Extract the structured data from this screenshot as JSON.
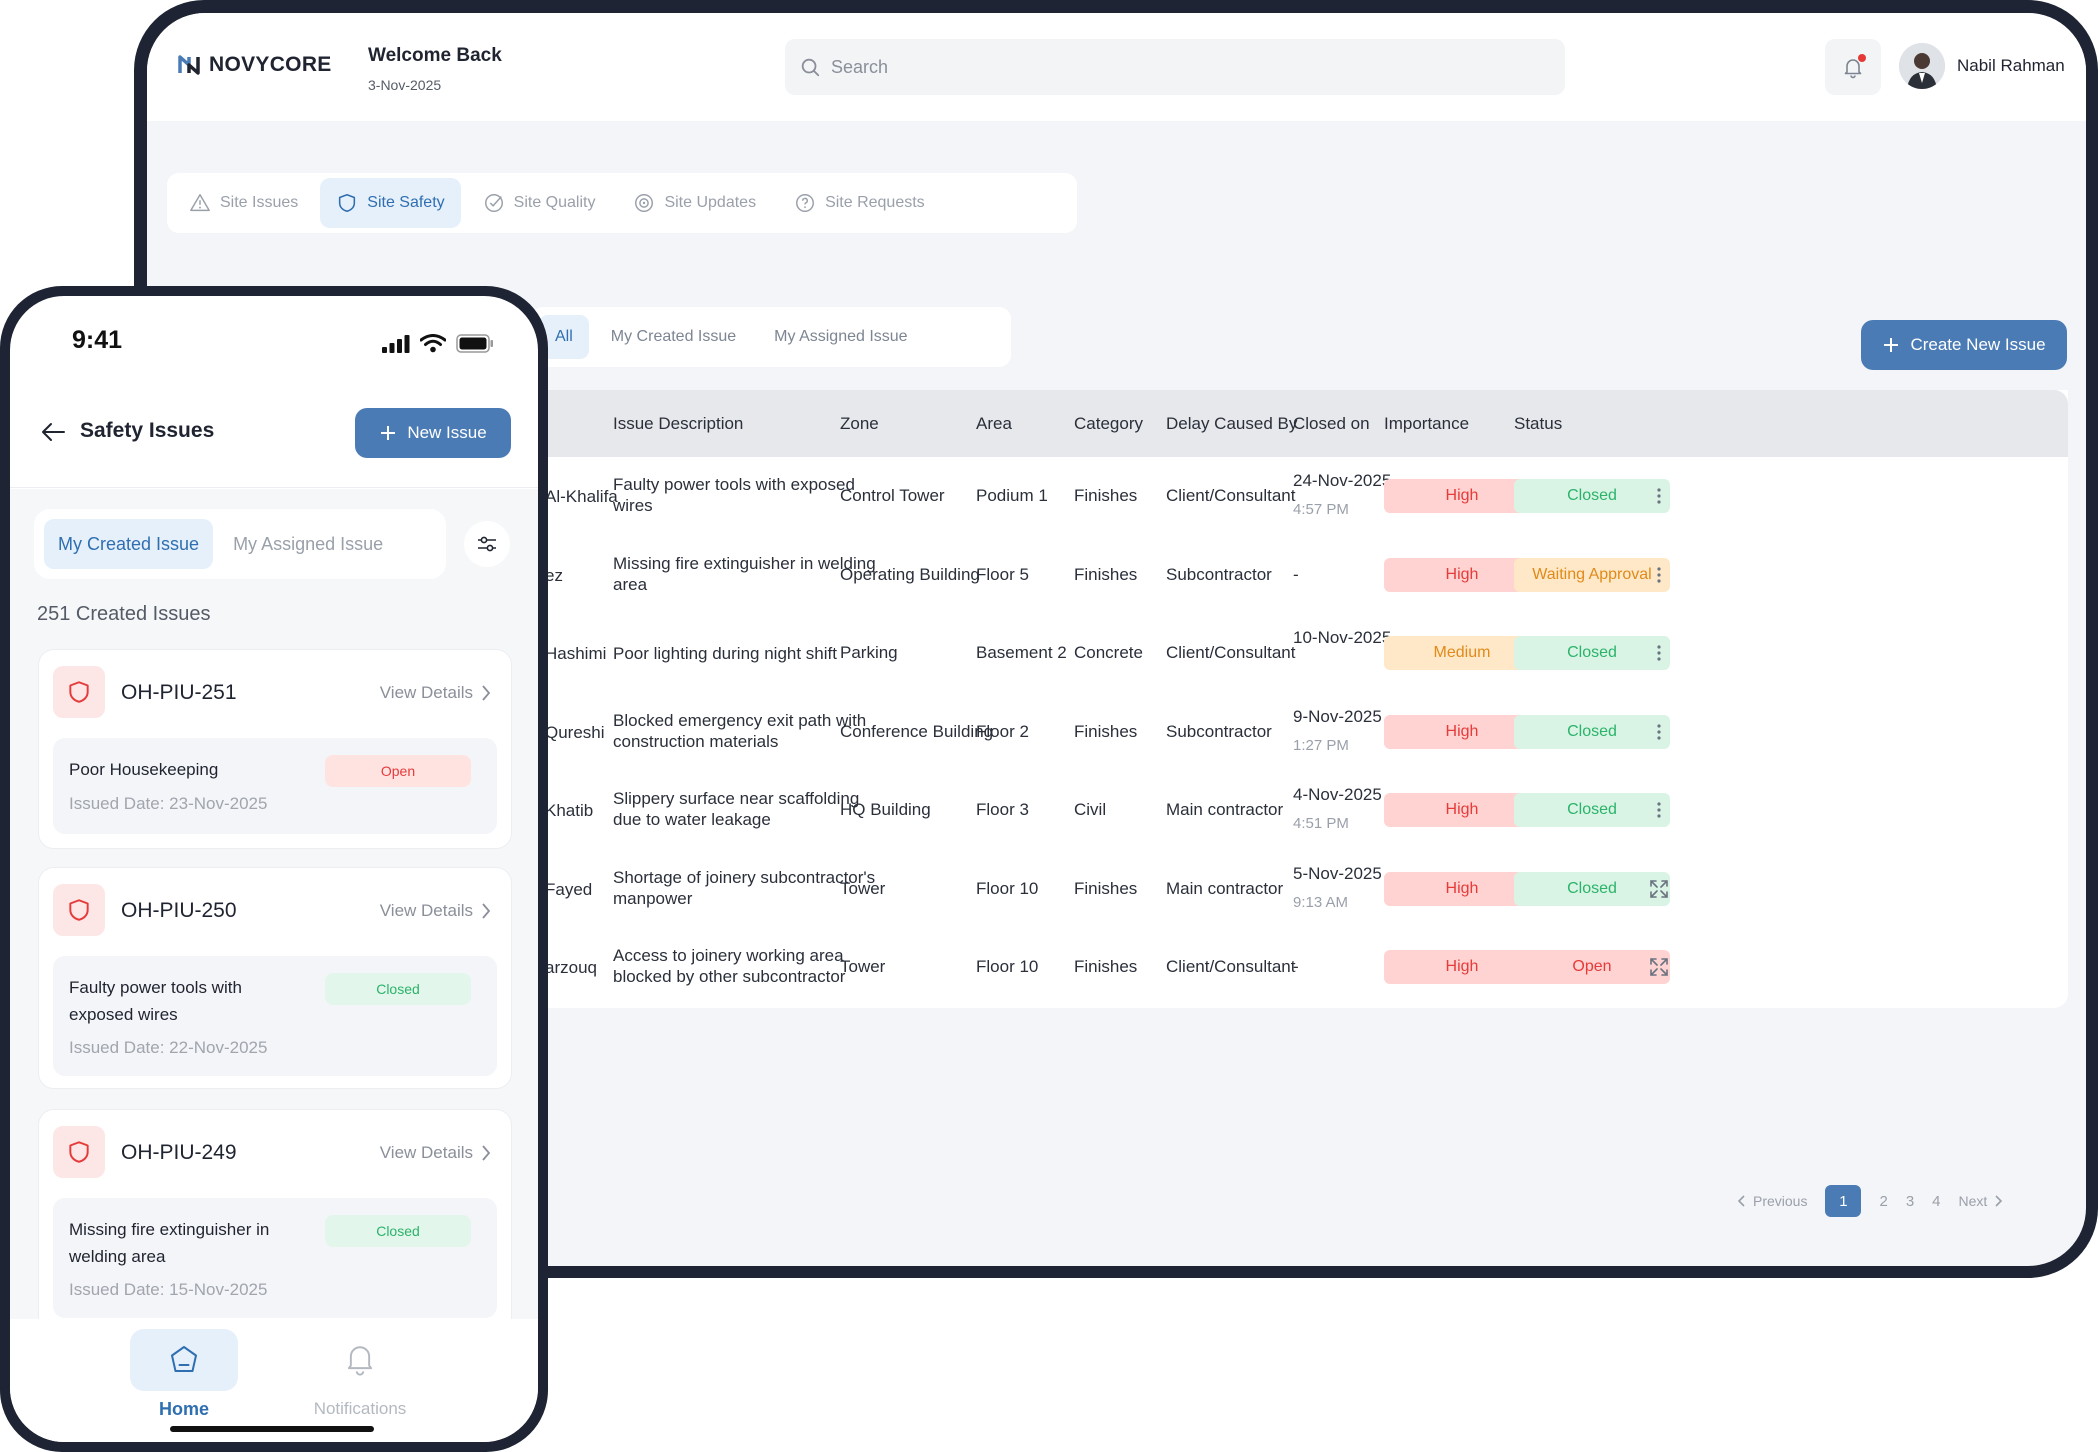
{
  "brand": {
    "name": "NOVYCORE"
  },
  "header": {
    "welcome_title": "Welcome Back",
    "date": "3-Nov-2025",
    "search_placeholder": "Search",
    "user_name": "Nabil Rahman"
  },
  "main_tabs": [
    {
      "label": "Site Issues",
      "icon": "warning-icon",
      "active": false
    },
    {
      "label": "Site Safety",
      "icon": "shield-icon",
      "active": true
    },
    {
      "label": "Site Quality",
      "icon": "check-circle-icon",
      "active": false
    },
    {
      "label": "Site Updates",
      "icon": "target-icon",
      "active": false
    },
    {
      "label": "Site Requests",
      "icon": "help-circle-icon",
      "active": false
    }
  ],
  "sub_tabs": [
    {
      "label": "All",
      "active": true
    },
    {
      "label": "My Created Issue",
      "active": false
    },
    {
      "label": "My Assigned Issue",
      "active": false
    }
  ],
  "create_button": "Create New Issue",
  "table": {
    "columns": [
      "Issue Description",
      "Zone",
      "Area",
      "Category",
      "Delay Caused By",
      "Closed on",
      "Importance",
      "Status"
    ],
    "rows": [
      {
        "name": "Al-Khalifa",
        "desc": [
          "Faulty power tools with exposed",
          "wires"
        ],
        "zone": "Control Tower",
        "area": "Podium 1",
        "category": "Finishes",
        "delay": "Client/Consultant",
        "closed_date": "24-Nov-2025",
        "closed_time": "4:57 PM",
        "importance": "High",
        "status": "Closed",
        "action": "more"
      },
      {
        "name": "ez",
        "desc": [
          "Missing fire extinguisher in welding",
          "area"
        ],
        "zone": "Operating Building",
        "area": "Floor 5",
        "category": "Finishes",
        "delay": "Subcontractor",
        "closed_date": "-",
        "closed_time": "",
        "importance": "High",
        "status": "Waiting Approval",
        "action": "more"
      },
      {
        "name": "Hashimi",
        "desc": [
          "Poor lighting during night shift",
          ""
        ],
        "zone": "Parking",
        "area": "Basement 2",
        "category": "Concrete",
        "delay": "Client/Consultant",
        "closed_date": "10-Nov-2025",
        "closed_time": "",
        "importance": "Medium",
        "status": "Closed",
        "action": "more"
      },
      {
        "name": "Qureshi",
        "desc": [
          "Blocked emergency exit path with",
          "construction materials"
        ],
        "zone": "Conference Building",
        "area": "Floor 2",
        "category": "Finishes",
        "delay": "Subcontractor",
        "closed_date": "9-Nov-2025",
        "closed_time": "1:27 PM",
        "importance": "High",
        "status": "Closed",
        "action": "more"
      },
      {
        "name": "Khatib",
        "desc": [
          "Slippery surface near scaffolding",
          "due to water leakage"
        ],
        "zone": "HQ Building",
        "area": "Floor 3",
        "category": "Civil",
        "delay": "Main contractor",
        "closed_date": "4-Nov-2025",
        "closed_time": "4:51 PM",
        "importance": "High",
        "status": "Closed",
        "action": "more"
      },
      {
        "name": "Fayed",
        "desc": [
          "Shortage of joinery subcontractor's",
          "manpower"
        ],
        "zone": "Tower",
        "area": "Floor 10",
        "category": "Finishes",
        "delay": "Main contractor",
        "closed_date": "5-Nov-2025",
        "closed_time": "9:13 AM",
        "importance": "High",
        "status": "Closed",
        "action": "expand"
      },
      {
        "name": "arzouq",
        "desc": [
          "Access to joinery working area",
          "blocked by other subcontractor"
        ],
        "zone": "Tower",
        "area": "Floor 10",
        "category": "Finishes",
        "delay": "Client/Consultant",
        "closed_date": "-",
        "closed_time": "",
        "importance": "High",
        "status": "Open",
        "action": "expand"
      }
    ]
  },
  "pagination": {
    "previous": "Previous",
    "next": "Next",
    "pages": [
      "1",
      "2",
      "3",
      "4"
    ],
    "current": "1"
  },
  "phone": {
    "time": "9:41",
    "title": "Safety Issues",
    "new_button": "New Issue",
    "tabs": [
      {
        "label": "My Created Issue",
        "active": true
      },
      {
        "label": "My Assigned Issue",
        "active": false
      }
    ],
    "count_label": "251 Created Issues",
    "cards": [
      {
        "id": "OH-PIU-251",
        "view": "View Details",
        "title": "Poor Housekeeping",
        "status": "Open",
        "issued": "Issued Date: 23-Nov-2025"
      },
      {
        "id": "OH-PIU-250",
        "view": "View Details",
        "title": "Faulty power tools with exposed wires",
        "status": "Closed",
        "issued": "Issued Date: 22-Nov-2025"
      },
      {
        "id": "OH-PIU-249",
        "view": "View Details",
        "title": "Missing fire extinguisher in welding area",
        "status": "Closed",
        "issued": "Issued Date: 15-Nov-2025"
      }
    ],
    "nav": {
      "home": "Home",
      "notifications": "Notifications"
    }
  },
  "colors": {
    "accent": "#4b7bb5",
    "tablet_frame": "#1e2433",
    "high": "#e53b3b",
    "closed": "#2bb36a",
    "waiting": "#e08a1a"
  }
}
